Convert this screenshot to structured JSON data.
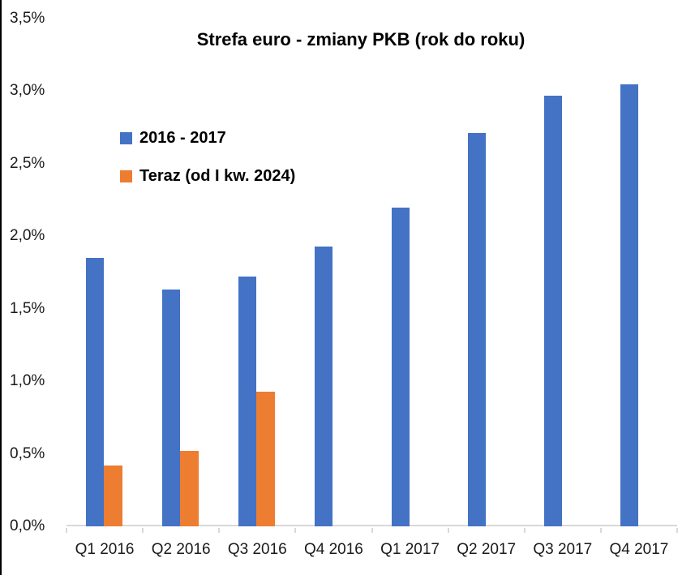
{
  "chart_data": {
    "type": "bar",
    "title": "Strefa euro - zmiany PKB (rok do roku)",
    "categories": [
      "Q1 2016",
      "Q2 2016",
      "Q3 2016",
      "Q4 2016",
      "Q1 2017",
      "Q2 2017",
      "Q3 2017",
      "Q4 2017"
    ],
    "series": [
      {
        "name": "2016 - 2017",
        "color": "#4472C4",
        "values": [
          1.85,
          1.63,
          1.72,
          1.93,
          2.2,
          2.71,
          2.97,
          3.05
        ]
      },
      {
        "name": "Teraz (od I kw. 2024)",
        "color": "#ED7D31",
        "values": [
          0.42,
          0.52,
          0.93,
          null,
          null,
          null,
          null,
          null
        ]
      }
    ],
    "ylim": [
      0,
      3.5
    ],
    "ytick_step": 0.5,
    "ytick_labels": [
      "0,0%",
      "0,5%",
      "1,0%",
      "1,5%",
      "2,0%",
      "2,5%",
      "3,0%",
      "3,5%"
    ],
    "xlabel": "",
    "ylabel": "",
    "grid": false,
    "legend_position": "inside-top-left",
    "axis_color": "#D9D9D9",
    "label_color": "#1a1a1a",
    "border_color": "#000000"
  }
}
